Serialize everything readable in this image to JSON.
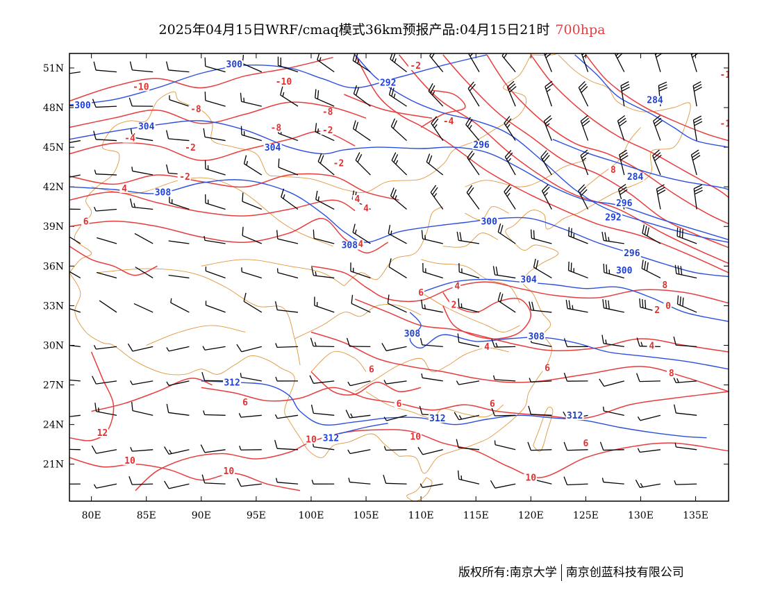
{
  "title": {
    "main": "2025年04月15日WRF/cmaq模式36km预报产品:04月15日21时",
    "level": "700hpa"
  },
  "colors": {
    "temperature_contour": "#e83c3c",
    "height_contour": "#2a4fe0",
    "border": "#e0963c",
    "wind_barb": "#000000",
    "level_text": "#e04040"
  },
  "axes": {
    "lat_labels": [
      "51N",
      "48N",
      "45N",
      "42N",
      "39N",
      "36N",
      "33N",
      "30N",
      "27N",
      "24N",
      "21N"
    ],
    "lon_labels": [
      "80E",
      "85E",
      "90E",
      "95E",
      "100E",
      "105E",
      "110E",
      "115E",
      "120E",
      "125E",
      "130E",
      "135E"
    ]
  },
  "contour_labels": {
    "red": [
      {
        "text": "-10",
        "lon": 84.5,
        "lat": 49.4
      },
      {
        "text": "-10",
        "lon": 97.5,
        "lat": 49.8
      },
      {
        "text": "-8",
        "lon": 89.5,
        "lat": 47.7
      },
      {
        "text": "-8",
        "lon": 96.8,
        "lat": 46.3
      },
      {
        "text": "-8",
        "lon": 101.5,
        "lat": 47.5
      },
      {
        "text": "-2",
        "lon": 109.5,
        "lat": 51.0
      },
      {
        "text": "-2",
        "lon": 101.5,
        "lat": 46.1
      },
      {
        "text": "-4",
        "lon": 83.5,
        "lat": 45.5
      },
      {
        "text": "-4",
        "lon": 112.5,
        "lat": 46.8
      },
      {
        "text": "-2",
        "lon": 89.0,
        "lat": 44.8
      },
      {
        "text": "-2",
        "lon": 102.5,
        "lat": 43.6
      },
      {
        "text": "-2",
        "lon": 88.5,
        "lat": 42.6
      },
      {
        "text": "4",
        "lon": 83.0,
        "lat": 41.7
      },
      {
        "text": "4",
        "lon": 104.2,
        "lat": 40.9
      },
      {
        "text": "4",
        "lon": 105.0,
        "lat": 40.2
      },
      {
        "text": "4",
        "lon": 104.5,
        "lat": 37.5
      },
      {
        "text": "6",
        "lon": 79.5,
        "lat": 39.2
      },
      {
        "text": "8",
        "lon": 127.5,
        "lat": 43.1
      },
      {
        "text": "6",
        "lon": 110.0,
        "lat": 33.8
      },
      {
        "text": "4",
        "lon": 113.3,
        "lat": 34.3
      },
      {
        "text": "2",
        "lon": 113.0,
        "lat": 32.9
      },
      {
        "text": "2",
        "lon": 131.5,
        "lat": 32.5
      },
      {
        "text": "0",
        "lon": 132.5,
        "lat": 32.8
      },
      {
        "text": "8",
        "lon": 132.2,
        "lat": 34.4
      },
      {
        "text": "4",
        "lon": 116.0,
        "lat": 29.7
      },
      {
        "text": "6",
        "lon": 121.5,
        "lat": 28.1
      },
      {
        "text": "4",
        "lon": 131.0,
        "lat": 29.8
      },
      {
        "text": "8",
        "lon": 132.8,
        "lat": 27.7
      },
      {
        "text": "6",
        "lon": 105.5,
        "lat": 28.0
      },
      {
        "text": "6",
        "lon": 94.0,
        "lat": 25.5
      },
      {
        "text": "6",
        "lon": 108.0,
        "lat": 25.4
      },
      {
        "text": "6",
        "lon": 116.5,
        "lat": 25.4
      },
      {
        "text": "12",
        "lon": 81.0,
        "lat": 23.2
      },
      {
        "text": "10",
        "lon": 100.0,
        "lat": 22.7
      },
      {
        "text": "10",
        "lon": 109.5,
        "lat": 22.9
      },
      {
        "text": "10",
        "lon": 83.5,
        "lat": 21.1
      },
      {
        "text": "10",
        "lon": 92.5,
        "lat": 20.3
      },
      {
        "text": "10",
        "lon": 120.0,
        "lat": 19.8
      },
      {
        "text": "6",
        "lon": 125.0,
        "lat": 22.4
      },
      {
        "text": "-1",
        "lon": 137.7,
        "lat": 46.6
      },
      {
        "text": "-1",
        "lon": 137.7,
        "lat": 50.3
      }
    ],
    "blue": [
      {
        "text": "300",
        "lon": 93.0,
        "lat": 51.1
      },
      {
        "text": "300",
        "lon": 79.2,
        "lat": 48.0
      },
      {
        "text": "292",
        "lon": 107.0,
        "lat": 49.7
      },
      {
        "text": "304",
        "lon": 85.0,
        "lat": 46.4
      },
      {
        "text": "304",
        "lon": 96.5,
        "lat": 44.8
      },
      {
        "text": "296",
        "lon": 115.5,
        "lat": 45.0
      },
      {
        "text": "284",
        "lon": 131.3,
        "lat": 48.4
      },
      {
        "text": "284",
        "lon": 129.5,
        "lat": 42.6
      },
      {
        "text": "308",
        "lon": 86.5,
        "lat": 41.4
      },
      {
        "text": "300",
        "lon": 116.2,
        "lat": 39.2
      },
      {
        "text": "296",
        "lon": 128.5,
        "lat": 40.6
      },
      {
        "text": "292",
        "lon": 127.5,
        "lat": 39.5
      },
      {
        "text": "308",
        "lon": 103.5,
        "lat": 37.4
      },
      {
        "text": "296",
        "lon": 129.2,
        "lat": 36.8
      },
      {
        "text": "300",
        "lon": 128.5,
        "lat": 35.5
      },
      {
        "text": "304",
        "lon": 119.8,
        "lat": 34.8
      },
      {
        "text": "308",
        "lon": 109.2,
        "lat": 30.7
      },
      {
        "text": "308",
        "lon": 120.5,
        "lat": 30.5
      },
      {
        "text": "312",
        "lon": 92.8,
        "lat": 27.0
      },
      {
        "text": "312",
        "lon": 111.5,
        "lat": 24.3
      },
      {
        "text": "312",
        "lon": 101.8,
        "lat": 22.8
      },
      {
        "text": "312",
        "lon": 124.0,
        "lat": 24.5
      }
    ]
  },
  "footer": {
    "left": "版权所有:南京大学",
    "right": "南京创蓝科技有限公司"
  }
}
